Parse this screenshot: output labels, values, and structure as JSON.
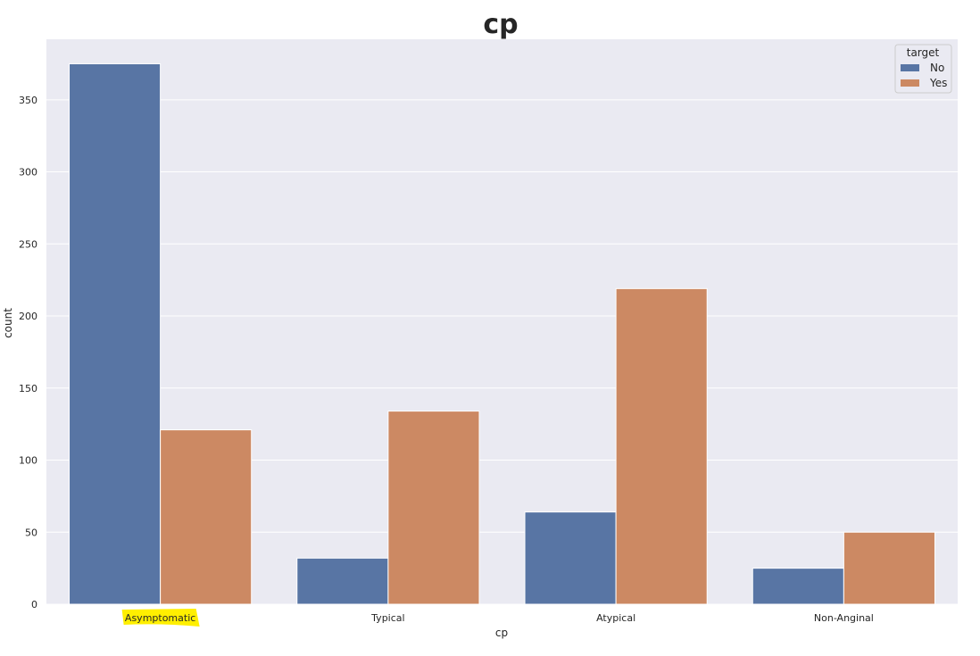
{
  "chart_data": {
    "type": "bar",
    "title": "cp",
    "xlabel": "cp",
    "ylabel": "count",
    "categories": [
      "Asymptomatic",
      "Typical",
      "Atypical",
      "Non-Anginal"
    ],
    "series": [
      {
        "name": "No",
        "values": [
          375,
          32,
          64,
          25
        ],
        "color": "#5875a4"
      },
      {
        "name": "Yes",
        "values": [
          121,
          134,
          219,
          50
        ],
        "color": "#cc8963"
      }
    ],
    "ylim": [
      0,
      392
    ],
    "yticks": [
      0,
      50,
      100,
      150,
      200,
      250,
      300,
      350
    ],
    "grid": true,
    "legend": {
      "title": "target",
      "placement": "top-right"
    },
    "highlighted_tick": "Asymptomatic",
    "highlight_color": "#ffef00",
    "background_color": "#eaeaf2"
  }
}
